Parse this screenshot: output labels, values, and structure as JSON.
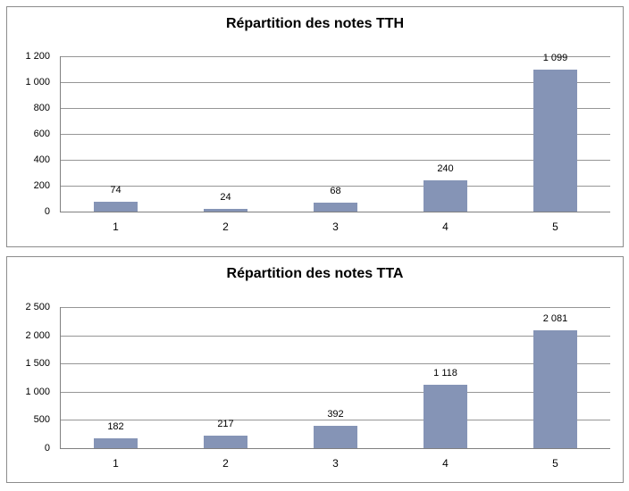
{
  "page": {
    "background": "#FFFFFF"
  },
  "colors": {
    "bar_fill": "#8594B6",
    "gridline": "#969696",
    "axis_line": "#808080",
    "panel_border": "#8C8C8C",
    "label_text": "#000000"
  },
  "chart_data": [
    {
      "type": "bar",
      "title": "Répartition des notes TTH",
      "categories": [
        "1",
        "2",
        "3",
        "4",
        "5"
      ],
      "values": [
        74,
        24,
        68,
        240,
        1099
      ],
      "data_labels": [
        "74",
        "24",
        "68",
        "240",
        "1 099"
      ],
      "y_ticks": [
        0,
        200,
        400,
        600,
        800,
        1000,
        1200
      ],
      "y_tick_labels": [
        "0",
        "200",
        "400",
        "600",
        "800",
        "1 000",
        "1 200"
      ],
      "ylim": [
        0,
        1200
      ],
      "xlabel": "",
      "ylabel": "",
      "grid": true,
      "legend": "none"
    },
    {
      "type": "bar",
      "title": "Répartition des notes TTA",
      "categories": [
        "1",
        "2",
        "3",
        "4",
        "5"
      ],
      "values": [
        182,
        217,
        392,
        1118,
        2081
      ],
      "data_labels": [
        "182",
        "217",
        "392",
        "1 118",
        "2 081"
      ],
      "y_ticks": [
        0,
        500,
        1000,
        1500,
        2000,
        2500
      ],
      "y_tick_labels": [
        "0",
        "500",
        "1 000",
        "1 500",
        "2 000",
        "2 500"
      ],
      "ylim": [
        0,
        2500
      ],
      "xlabel": "",
      "ylabel": "",
      "grid": true,
      "legend": "none"
    }
  ]
}
